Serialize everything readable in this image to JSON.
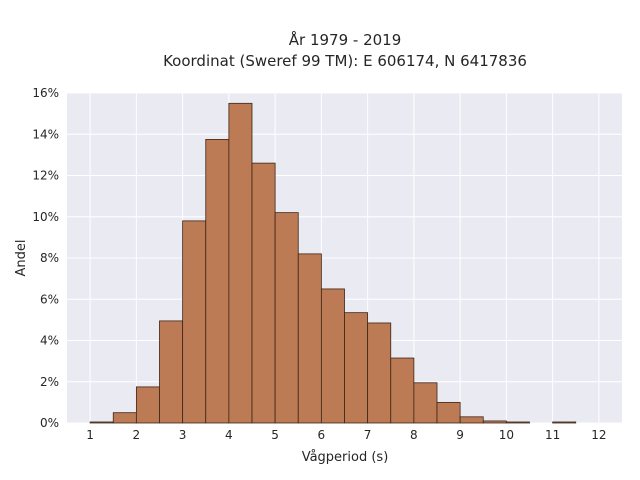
{
  "chart_data": {
    "type": "bar",
    "title_line1": "År 1979 - 2019",
    "title_line2": "Koordinat (Sweref 99 TM): E 606174, N 6417836",
    "xlabel": "Vågperiod (s)",
    "ylabel": "Andel",
    "xlim": [
      0.5,
      12.5
    ],
    "ylim": [
      0,
      16
    ],
    "x_ticks": [
      1,
      2,
      3,
      4,
      5,
      6,
      7,
      8,
      9,
      10,
      11,
      12
    ],
    "y_ticks": [
      {
        "value": 0,
        "label": "0%"
      },
      {
        "value": 2,
        "label": "2%"
      },
      {
        "value": 4,
        "label": "4%"
      },
      {
        "value": 6,
        "label": "6%"
      },
      {
        "value": 8,
        "label": "8%"
      },
      {
        "value": 10,
        "label": "10%"
      },
      {
        "value": 12,
        "label": "12%"
      },
      {
        "value": 14,
        "label": "14%"
      },
      {
        "value": 16,
        "label": "16%"
      }
    ],
    "bin_width": 0.5,
    "bins": [
      {
        "x0": 1.0,
        "value": 0.05
      },
      {
        "x0": 1.5,
        "value": 0.5
      },
      {
        "x0": 2.0,
        "value": 1.75
      },
      {
        "x0": 2.5,
        "value": 4.95
      },
      {
        "x0": 3.0,
        "value": 9.8
      },
      {
        "x0": 3.5,
        "value": 13.75
      },
      {
        "x0": 4.0,
        "value": 15.5
      },
      {
        "x0": 4.5,
        "value": 12.6
      },
      {
        "x0": 5.0,
        "value": 10.2
      },
      {
        "x0": 5.5,
        "value": 8.2
      },
      {
        "x0": 6.0,
        "value": 6.5
      },
      {
        "x0": 6.5,
        "value": 5.35
      },
      {
        "x0": 7.0,
        "value": 4.85
      },
      {
        "x0": 7.5,
        "value": 3.15
      },
      {
        "x0": 8.0,
        "value": 1.95
      },
      {
        "x0": 8.5,
        "value": 1.0
      },
      {
        "x0": 9.0,
        "value": 0.3
      },
      {
        "x0": 9.5,
        "value": 0.1
      },
      {
        "x0": 10.0,
        "value": 0.05
      },
      {
        "x0": 10.5,
        "value": 0.0
      },
      {
        "x0": 11.0,
        "value": 0.05
      },
      {
        "x0": 11.5,
        "value": 0.0
      }
    ],
    "grid": true,
    "colors": {
      "bar_fill": "#bc7a55",
      "bar_edge": "#3d2518",
      "plot_background": "#eaeaf2",
      "grid": "#ffffff"
    }
  }
}
